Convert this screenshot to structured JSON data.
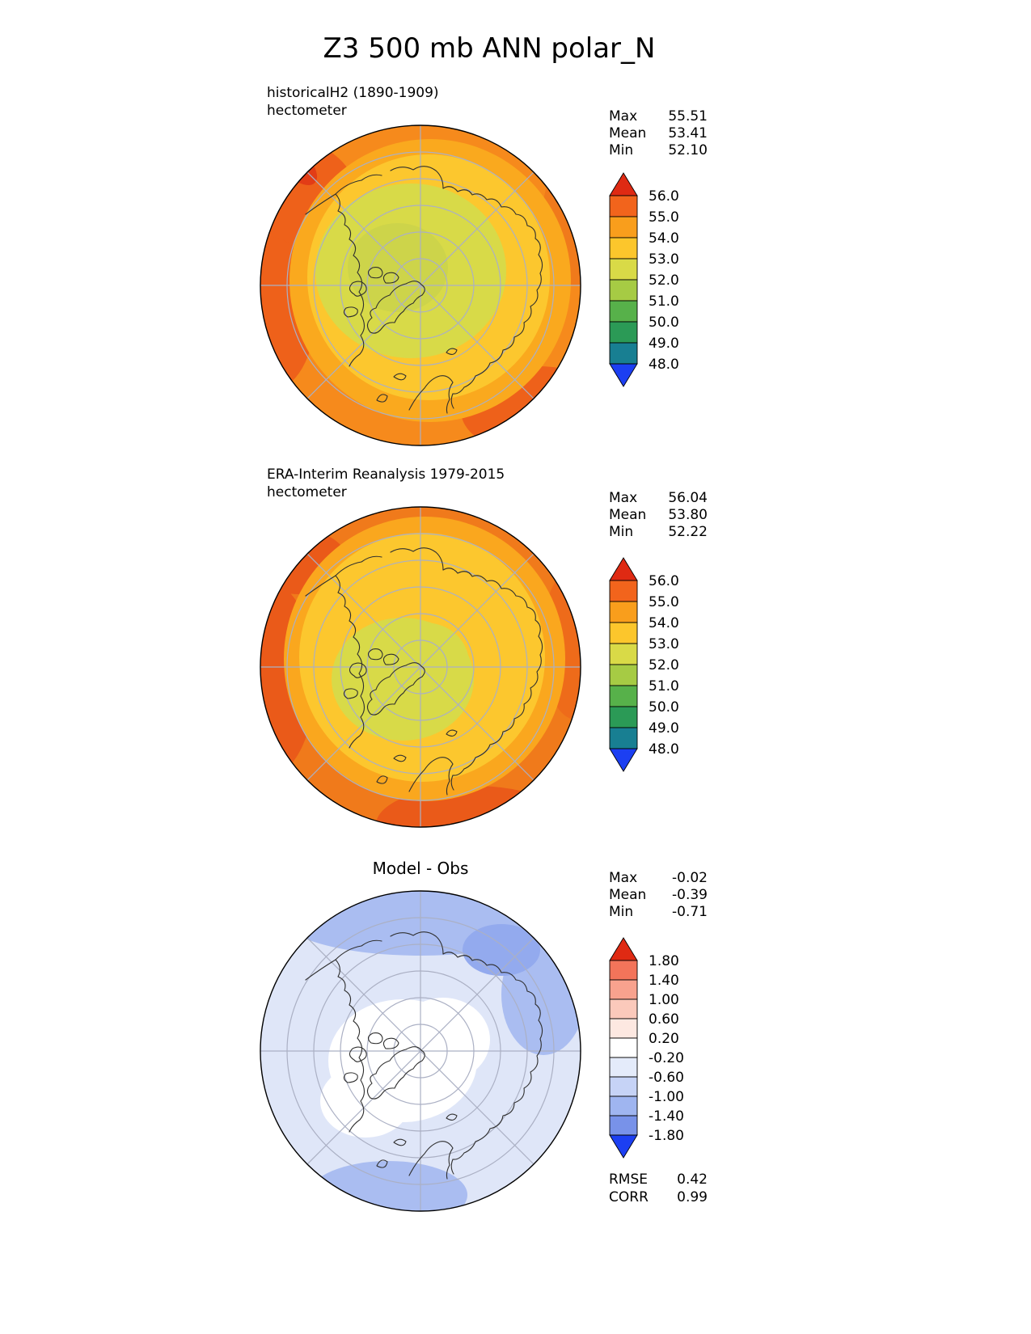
{
  "page_title": "Z3 500 mb ANN polar_N",
  "panels": {
    "model": {
      "title_line1": "historicalH2 (1890-1909)",
      "title_line2": "hectometer",
      "stats": {
        "max_label": "Max",
        "max_value": "55.51",
        "mean_label": "Mean",
        "mean_value": "53.41",
        "min_label": "Min",
        "min_value": "52.10"
      },
      "colorbar": {
        "tick_labels": [
          "56.0",
          "55.0",
          "54.0",
          "53.0",
          "52.0",
          "51.0",
          "50.0",
          "49.0",
          "48.0"
        ],
        "colors": [
          "#df2a13",
          "#f2641c",
          "#f99e1c",
          "#fcc62c",
          "#d9da47",
          "#a6cb44",
          "#57b14a",
          "#2b9a56",
          "#187f92",
          "#1c3ff2"
        ]
      }
    },
    "obs": {
      "title_line1": "ERA-Interim Reanalysis 1979-2015",
      "title_line2": "hectometer",
      "stats": {
        "max_label": "Max",
        "max_value": "56.04",
        "mean_label": "Mean",
        "mean_value": "53.80",
        "min_label": "Min",
        "min_value": "52.22"
      },
      "colorbar": {
        "tick_labels": [
          "56.0",
          "55.0",
          "54.0",
          "53.0",
          "52.0",
          "51.0",
          "50.0",
          "49.0",
          "48.0"
        ],
        "colors": [
          "#df2a13",
          "#f2641c",
          "#f99e1c",
          "#fcc62c",
          "#d9da47",
          "#a6cb44",
          "#57b14a",
          "#2b9a56",
          "#187f92",
          "#1c3ff2"
        ]
      }
    },
    "diff": {
      "title": "Model - Obs",
      "stats": {
        "max_label": "Max",
        "max_value": "-0.02",
        "mean_label": "Mean",
        "mean_value": "-0.39",
        "min_label": "Min",
        "min_value": "-0.71"
      },
      "colorbar": {
        "tick_labels": [
          "1.80",
          "1.40",
          "1.00",
          "0.60",
          "0.20",
          "-0.20",
          "-0.60",
          "-1.00",
          "-1.40",
          "-1.80"
        ],
        "colors": [
          "#df2a13",
          "#f3745a",
          "#f8a28e",
          "#fbc9bb",
          "#fde8e1",
          "#ffffff",
          "#e4ebfa",
          "#c6d3f6",
          "#9fb5f0",
          "#7892e9",
          "#1c3ff2"
        ]
      },
      "metrics": {
        "rmse_label": "RMSE",
        "rmse_value": "0.42",
        "corr_label": "CORR",
        "corr_value": "0.99"
      }
    }
  },
  "chart_data": [
    {
      "type": "heatmap",
      "subtype": "filled-contour-polar-map",
      "projection": "north-polar-stereographic",
      "figure_title": "Z3 500 mb ANN polar_N",
      "title": "historicalH2 (1890-1909)",
      "variable": "Z3",
      "level": "500 mb",
      "season": "ANN",
      "units": "hectometer",
      "contour_levels": [
        48.0,
        49.0,
        50.0,
        51.0,
        52.0,
        53.0,
        54.0,
        55.0,
        56.0
      ],
      "colorbar_colors": [
        "#df2a13",
        "#f2641c",
        "#f99e1c",
        "#fcc62c",
        "#d9da47",
        "#a6cb44",
        "#57b14a",
        "#2b9a56",
        "#187f92",
        "#1c3ff2"
      ],
      "stats": {
        "max": 55.51,
        "mean": 53.41,
        "min": 52.1
      }
    },
    {
      "type": "heatmap",
      "subtype": "filled-contour-polar-map",
      "projection": "north-polar-stereographic",
      "title": "ERA-Interim Reanalysis 1979-2015",
      "variable": "Z3",
      "level": "500 mb",
      "season": "ANN",
      "units": "hectometer",
      "contour_levels": [
        48.0,
        49.0,
        50.0,
        51.0,
        52.0,
        53.0,
        54.0,
        55.0,
        56.0
      ],
      "colorbar_colors": [
        "#df2a13",
        "#f2641c",
        "#f99e1c",
        "#fcc62c",
        "#d9da47",
        "#a6cb44",
        "#57b14a",
        "#2b9a56",
        "#187f92",
        "#1c3ff2"
      ],
      "stats": {
        "max": 56.04,
        "mean": 53.8,
        "min": 52.22
      }
    },
    {
      "type": "heatmap",
      "subtype": "filled-contour-polar-map",
      "projection": "north-polar-stereographic",
      "title": "Model - Obs",
      "units": "hectometer",
      "contour_levels": [
        -1.8,
        -1.4,
        -1.0,
        -0.6,
        -0.2,
        0.2,
        0.6,
        1.0,
        1.4,
        1.8
      ],
      "colorbar_colors": [
        "#df2a13",
        "#f3745a",
        "#f8a28e",
        "#fbc9bb",
        "#fde8e1",
        "#ffffff",
        "#e4ebfa",
        "#c6d3f6",
        "#9fb5f0",
        "#7892e9",
        "#1c3ff2"
      ],
      "stats": {
        "max": -0.02,
        "mean": -0.39,
        "min": -0.71
      },
      "rmse": 0.42,
      "corr": 0.99
    }
  ]
}
